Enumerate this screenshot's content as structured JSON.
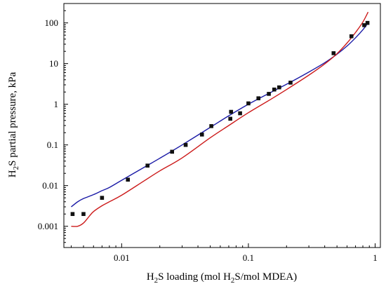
{
  "chart_data": {
    "type": "scatter",
    "xscale": "log",
    "yscale": "log",
    "xlim": [
      0.0035,
      1.1
    ],
    "ylim": [
      0.0003,
      300
    ],
    "xticks": [
      {
        "value": 0.01,
        "label": "0.01"
      },
      {
        "value": 0.1,
        "label": "0.1"
      },
      {
        "value": 1,
        "label": "1"
      }
    ],
    "yticks": [
      {
        "value": 0.001,
        "label": "0.001"
      },
      {
        "value": 0.01,
        "label": "0.01"
      },
      {
        "value": 0.1,
        "label": "0.1"
      },
      {
        "value": 1,
        "label": "1"
      },
      {
        "value": 10,
        "label": "10"
      },
      {
        "value": 100,
        "label": "100"
      }
    ],
    "xlabel": {
      "pre": "H",
      "sub": "2",
      "post": "S loading (mol H",
      "sub2": "2",
      "post2": "S/mol MDEA)"
    },
    "ylabel": {
      "pre": "H",
      "sub": "2",
      "post": "S partial pressure, kPa"
    },
    "grid": false,
    "legend": "none",
    "series": [
      {
        "kind": "points",
        "color": "#111111",
        "marker": "square",
        "x": [
          0.0041,
          0.005,
          0.007,
          0.0112,
          0.016,
          0.025,
          0.032,
          0.043,
          0.051,
          0.072,
          0.073,
          0.086,
          0.1,
          0.12,
          0.145,
          0.16,
          0.175,
          0.215,
          0.47,
          0.65,
          0.82,
          0.87
        ],
        "y": [
          0.002,
          0.002,
          0.005,
          0.014,
          0.031,
          0.068,
          0.1,
          0.18,
          0.29,
          0.44,
          0.65,
          0.6,
          1.05,
          1.4,
          1.8,
          2.3,
          2.6,
          3.4,
          18,
          47,
          88,
          100
        ]
      },
      {
        "kind": "line",
        "color": "#1a1aa6",
        "x": [
          0.004,
          0.0045,
          0.005,
          0.006,
          0.007,
          0.008,
          0.01,
          0.015,
          0.02,
          0.03,
          0.05,
          0.07,
          0.1,
          0.15,
          0.2,
          0.3,
          0.4,
          0.5,
          0.6,
          0.7,
          0.8,
          0.88
        ],
        "y": [
          0.003,
          0.004,
          0.0048,
          0.006,
          0.0075,
          0.009,
          0.0135,
          0.028,
          0.047,
          0.1,
          0.27,
          0.52,
          1.0,
          1.95,
          3.1,
          6.2,
          10.5,
          17,
          27,
          43,
          68,
          100
        ]
      },
      {
        "kind": "line",
        "color": "#cc1a1a",
        "x": [
          0.004,
          0.0045,
          0.005,
          0.0055,
          0.006,
          0.007,
          0.008,
          0.01,
          0.015,
          0.02,
          0.03,
          0.05,
          0.07,
          0.1,
          0.15,
          0.2,
          0.3,
          0.4,
          0.5,
          0.6,
          0.7,
          0.8,
          0.88
        ],
        "y": [
          0.001,
          0.001,
          0.0012,
          0.0017,
          0.0023,
          0.0032,
          0.004,
          0.0058,
          0.013,
          0.023,
          0.048,
          0.15,
          0.3,
          0.62,
          1.32,
          2.3,
          5.2,
          9.8,
          17.5,
          32,
          58,
          105,
          185
        ]
      }
    ]
  }
}
